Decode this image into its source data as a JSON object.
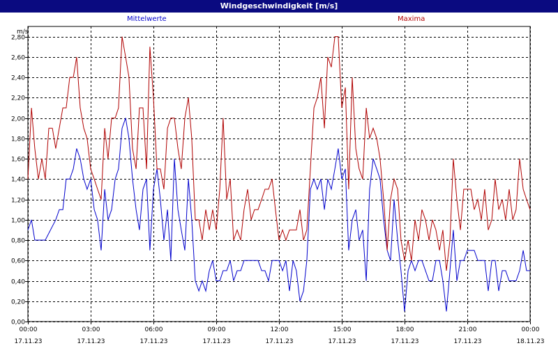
{
  "window": {
    "title": "Windgeschwindigkeit [m/s]"
  },
  "chart_data": {
    "type": "line",
    "title": "Windgeschwindigkeit [m/s]",
    "ylabel": "m/s",
    "ylim": [
      0,
      2.9
    ],
    "xlim": [
      0,
      24
    ],
    "grid": true,
    "y_ticks": [
      "0,00",
      "0,20",
      "0,40",
      "0,60",
      "0,80",
      "1,00",
      "1,20",
      "1,40",
      "1,60",
      "1,80",
      "2,00",
      "2,20",
      "2,40",
      "2,60",
      "2,80"
    ],
    "x_ticks": [
      {
        "time": "00:00",
        "date": "17.11.23",
        "hour": 0
      },
      {
        "time": "03:00",
        "date": "17.11.23",
        "hour": 3
      },
      {
        "time": "06:00",
        "date": "17.11.23",
        "hour": 6
      },
      {
        "time": "09:00",
        "date": "17.11.23",
        "hour": 9
      },
      {
        "time": "12:00",
        "date": "17.11.23",
        "hour": 12
      },
      {
        "time": "15:00",
        "date": "17.11.23",
        "hour": 15
      },
      {
        "time": "18:00",
        "date": "17.11.23",
        "hour": 18
      },
      {
        "time": "21:00",
        "date": "17.11.23",
        "hour": 21
      },
      {
        "time": "00:00",
        "date": "18.11.23",
        "hour": 24
      }
    ],
    "series": [
      {
        "name": "Mittelwerte",
        "color": "#0000cc",
        "points": [
          [
            0,
            0.9
          ],
          [
            0.17,
            1.0
          ],
          [
            0.33,
            0.8
          ],
          [
            0.83,
            0.8
          ],
          [
            1.33,
            1.0
          ],
          [
            1.5,
            1.1
          ],
          [
            1.67,
            1.1
          ],
          [
            1.83,
            1.4
          ],
          [
            2.0,
            1.4
          ],
          [
            2.17,
            1.5
          ],
          [
            2.33,
            1.7
          ],
          [
            2.5,
            1.6
          ],
          [
            2.67,
            1.4
          ],
          [
            2.83,
            1.3
          ],
          [
            3.0,
            1.4
          ],
          [
            3.17,
            1.1
          ],
          [
            3.33,
            1.0
          ],
          [
            3.5,
            0.7
          ],
          [
            3.67,
            1.3
          ],
          [
            3.83,
            1.0
          ],
          [
            4.0,
            1.1
          ],
          [
            4.17,
            1.4
          ],
          [
            4.33,
            1.5
          ],
          [
            4.5,
            1.9
          ],
          [
            4.67,
            2.0
          ],
          [
            4.83,
            1.8
          ],
          [
            5.0,
            1.4
          ],
          [
            5.17,
            1.1
          ],
          [
            5.33,
            0.9
          ],
          [
            5.5,
            1.3
          ],
          [
            5.67,
            1.4
          ],
          [
            5.83,
            0.7
          ],
          [
            6.0,
            1.3
          ],
          [
            6.17,
            1.5
          ],
          [
            6.33,
            1.2
          ],
          [
            6.5,
            0.8
          ],
          [
            6.67,
            1.1
          ],
          [
            6.83,
            0.6
          ],
          [
            7.0,
            1.6
          ],
          [
            7.17,
            1.1
          ],
          [
            7.33,
            0.9
          ],
          [
            7.5,
            0.7
          ],
          [
            7.67,
            1.4
          ],
          [
            7.83,
            1.0
          ],
          [
            8.0,
            0.4
          ],
          [
            8.17,
            0.3
          ],
          [
            8.33,
            0.4
          ],
          [
            8.5,
            0.3
          ],
          [
            8.67,
            0.5
          ],
          [
            8.83,
            0.6
          ],
          [
            9.0,
            0.4
          ],
          [
            9.17,
            0.4
          ],
          [
            9.33,
            0.5
          ],
          [
            9.5,
            0.5
          ],
          [
            9.67,
            0.6
          ],
          [
            9.83,
            0.4
          ],
          [
            10.0,
            0.5
          ],
          [
            10.17,
            0.5
          ],
          [
            10.33,
            0.6
          ],
          [
            11.0,
            0.6
          ],
          [
            11.17,
            0.5
          ],
          [
            11.33,
            0.5
          ],
          [
            11.5,
            0.4
          ],
          [
            11.67,
            0.6
          ],
          [
            12.0,
            0.6
          ],
          [
            12.17,
            0.5
          ],
          [
            12.33,
            0.6
          ],
          [
            12.5,
            0.3
          ],
          [
            12.67,
            0.6
          ],
          [
            12.83,
            0.5
          ],
          [
            13.0,
            0.2
          ],
          [
            13.17,
            0.3
          ],
          [
            13.33,
            0.6
          ],
          [
            13.5,
            1.3
          ],
          [
            13.67,
            1.4
          ],
          [
            13.83,
            1.3
          ],
          [
            14.0,
            1.4
          ],
          [
            14.17,
            1.1
          ],
          [
            14.33,
            1.4
          ],
          [
            14.5,
            1.3
          ],
          [
            14.67,
            1.5
          ],
          [
            14.83,
            1.7
          ],
          [
            15.0,
            1.4
          ],
          [
            15.17,
            1.5
          ],
          [
            15.33,
            0.7
          ],
          [
            15.5,
            1.0
          ],
          [
            15.67,
            1.1
          ],
          [
            15.83,
            0.8
          ],
          [
            16.0,
            0.9
          ],
          [
            16.17,
            0.4
          ],
          [
            16.33,
            1.3
          ],
          [
            16.5,
            1.6
          ],
          [
            16.67,
            1.5
          ],
          [
            16.83,
            1.4
          ],
          [
            17.0,
            1.0
          ],
          [
            17.17,
            0.7
          ],
          [
            17.33,
            0.6
          ],
          [
            17.5,
            1.2
          ],
          [
            17.67,
            0.8
          ],
          [
            17.83,
            0.5
          ],
          [
            18.0,
            0.1
          ],
          [
            18.17,
            0.5
          ],
          [
            18.33,
            0.6
          ],
          [
            18.5,
            0.5
          ],
          [
            18.67,
            0.6
          ],
          [
            18.83,
            0.6
          ],
          [
            19.0,
            0.5
          ],
          [
            19.17,
            0.4
          ],
          [
            19.33,
            0.4
          ],
          [
            19.5,
            0.6
          ],
          [
            19.67,
            0.6
          ],
          [
            19.83,
            0.4
          ],
          [
            20.0,
            0.1
          ],
          [
            20.17,
            0.5
          ],
          [
            20.33,
            0.9
          ],
          [
            20.5,
            0.4
          ],
          [
            20.67,
            0.6
          ],
          [
            20.83,
            0.6
          ],
          [
            21.0,
            0.7
          ],
          [
            21.33,
            0.7
          ],
          [
            21.5,
            0.6
          ],
          [
            21.67,
            0.6
          ],
          [
            21.83,
            0.6
          ],
          [
            22.0,
            0.3
          ],
          [
            22.17,
            0.6
          ],
          [
            22.33,
            0.6
          ],
          [
            22.5,
            0.3
          ],
          [
            22.67,
            0.5
          ],
          [
            22.83,
            0.5
          ],
          [
            23.0,
            0.4
          ],
          [
            23.33,
            0.4
          ],
          [
            23.5,
            0.5
          ],
          [
            23.67,
            0.7
          ],
          [
            23.83,
            0.5
          ],
          [
            24.0,
            0.5
          ]
        ]
      },
      {
        "name": "Maxima",
        "color": "#b00000",
        "points": [
          [
            0,
            1.4
          ],
          [
            0.17,
            2.1
          ],
          [
            0.33,
            1.7
          ],
          [
            0.5,
            1.4
          ],
          [
            0.67,
            1.6
          ],
          [
            0.83,
            1.4
          ],
          [
            1.0,
            1.9
          ],
          [
            1.17,
            1.9
          ],
          [
            1.33,
            1.7
          ],
          [
            1.5,
            1.9
          ],
          [
            1.67,
            2.1
          ],
          [
            1.83,
            2.1
          ],
          [
            2.0,
            2.4
          ],
          [
            2.17,
            2.4
          ],
          [
            2.33,
            2.6
          ],
          [
            2.5,
            2.1
          ],
          [
            2.67,
            1.9
          ],
          [
            2.83,
            1.8
          ],
          [
            3.0,
            1.5
          ],
          [
            3.17,
            1.4
          ],
          [
            3.33,
            1.3
          ],
          [
            3.5,
            1.2
          ],
          [
            3.67,
            1.9
          ],
          [
            3.83,
            1.6
          ],
          [
            4.0,
            2.0
          ],
          [
            4.17,
            2.0
          ],
          [
            4.33,
            2.1
          ],
          [
            4.5,
            2.8
          ],
          [
            4.67,
            2.6
          ],
          [
            4.83,
            2.4
          ],
          [
            5.0,
            1.7
          ],
          [
            5.17,
            1.5
          ],
          [
            5.33,
            2.1
          ],
          [
            5.5,
            2.1
          ],
          [
            5.67,
            1.5
          ],
          [
            5.83,
            2.7
          ],
          [
            6.0,
            2.2
          ],
          [
            6.17,
            1.5
          ],
          [
            6.33,
            1.5
          ],
          [
            6.5,
            1.3
          ],
          [
            6.67,
            1.9
          ],
          [
            6.83,
            2.0
          ],
          [
            7.0,
            2.0
          ],
          [
            7.17,
            1.7
          ],
          [
            7.33,
            1.5
          ],
          [
            7.5,
            2.0
          ],
          [
            7.67,
            2.2
          ],
          [
            7.83,
            1.8
          ],
          [
            8.0,
            1.0
          ],
          [
            8.17,
            1.0
          ],
          [
            8.33,
            0.8
          ],
          [
            8.5,
            1.1
          ],
          [
            8.67,
            0.9
          ],
          [
            8.83,
            1.1
          ],
          [
            9.0,
            0.9
          ],
          [
            9.17,
            1.3
          ],
          [
            9.33,
            2.0
          ],
          [
            9.5,
            1.2
          ],
          [
            9.67,
            1.4
          ],
          [
            9.83,
            0.8
          ],
          [
            10.0,
            0.9
          ],
          [
            10.17,
            0.8
          ],
          [
            10.33,
            1.1
          ],
          [
            10.5,
            1.3
          ],
          [
            10.67,
            1.0
          ],
          [
            10.83,
            1.1
          ],
          [
            11.0,
            1.1
          ],
          [
            11.17,
            1.2
          ],
          [
            11.33,
            1.3
          ],
          [
            11.5,
            1.3
          ],
          [
            11.67,
            1.4
          ],
          [
            11.83,
            1.1
          ],
          [
            12.0,
            0.8
          ],
          [
            12.17,
            0.9
          ],
          [
            12.33,
            0.8
          ],
          [
            12.5,
            0.9
          ],
          [
            12.67,
            0.9
          ],
          [
            12.83,
            0.9
          ],
          [
            13.0,
            1.1
          ],
          [
            13.17,
            0.8
          ],
          [
            13.33,
            0.9
          ],
          [
            13.5,
            1.5
          ],
          [
            13.67,
            2.1
          ],
          [
            13.83,
            2.2
          ],
          [
            14.0,
            2.4
          ],
          [
            14.17,
            1.9
          ],
          [
            14.33,
            2.6
          ],
          [
            14.5,
            2.5
          ],
          [
            14.67,
            2.8
          ],
          [
            14.83,
            2.8
          ],
          [
            15.0,
            2.1
          ],
          [
            15.17,
            2.3
          ],
          [
            15.33,
            1.3
          ],
          [
            15.5,
            2.4
          ],
          [
            15.67,
            1.7
          ],
          [
            15.83,
            1.5
          ],
          [
            16.0,
            1.4
          ],
          [
            16.17,
            2.1
          ],
          [
            16.33,
            1.8
          ],
          [
            16.5,
            1.9
          ],
          [
            16.67,
            1.8
          ],
          [
            16.83,
            1.6
          ],
          [
            17.0,
            1.2
          ],
          [
            17.17,
            0.7
          ],
          [
            17.33,
            1.2
          ],
          [
            17.5,
            1.4
          ],
          [
            17.67,
            1.3
          ],
          [
            17.83,
            0.8
          ],
          [
            18.0,
            0.6
          ],
          [
            18.17,
            0.8
          ],
          [
            18.33,
            0.6
          ],
          [
            18.5,
            1.0
          ],
          [
            18.67,
            0.8
          ],
          [
            18.83,
            1.1
          ],
          [
            19.0,
            1.0
          ],
          [
            19.17,
            0.8
          ],
          [
            19.33,
            1.0
          ],
          [
            19.5,
            0.9
          ],
          [
            19.67,
            0.7
          ],
          [
            19.83,
            0.9
          ],
          [
            20.0,
            0.5
          ],
          [
            20.17,
            0.8
          ],
          [
            20.33,
            1.6
          ],
          [
            20.5,
            1.2
          ],
          [
            20.67,
            0.9
          ],
          [
            20.83,
            1.3
          ],
          [
            21.0,
            1.3
          ],
          [
            21.17,
            1.3
          ],
          [
            21.33,
            1.1
          ],
          [
            21.5,
            1.2
          ],
          [
            21.67,
            1.0
          ],
          [
            21.83,
            1.3
          ],
          [
            22.0,
            0.9
          ],
          [
            22.17,
            1.0
          ],
          [
            22.33,
            1.4
          ],
          [
            22.5,
            1.1
          ],
          [
            22.67,
            1.2
          ],
          [
            22.83,
            1.0
          ],
          [
            23.0,
            1.3
          ],
          [
            23.17,
            1.0
          ],
          [
            23.33,
            1.1
          ],
          [
            23.5,
            1.6
          ],
          [
            23.67,
            1.3
          ],
          [
            23.83,
            1.2
          ],
          [
            24.0,
            1.1
          ]
        ]
      }
    ]
  }
}
